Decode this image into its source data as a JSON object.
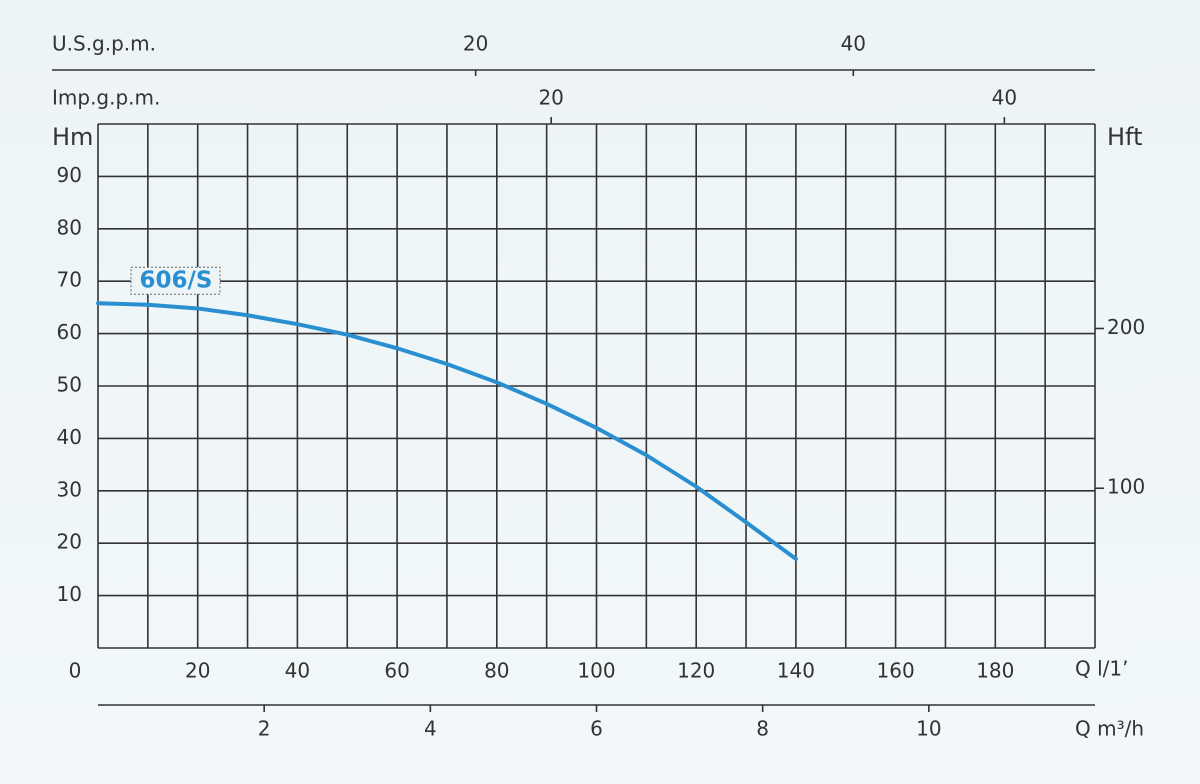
{
  "chart_data": {
    "type": "line",
    "y_label": "Hm",
    "y2_label": "Hft",
    "x_label": "Q l/1’",
    "x": [
      0,
      10,
      20,
      30,
      40,
      50,
      60,
      70,
      80,
      90,
      100,
      110,
      120,
      130,
      140
    ],
    "series": [
      {
        "name": "606/S",
        "color": "#2a8fd0",
        "values": [
          65.8,
          65.5,
          64.8,
          63.5,
          61.8,
          59.8,
          57.2,
          54.2,
          50.7,
          46.6,
          42,
          36.8,
          30.8,
          24,
          17
        ]
      }
    ],
    "xlim": [
      0,
      200
    ],
    "xticks": [
      0,
      20,
      40,
      60,
      80,
      100,
      120,
      140,
      160,
      180
    ],
    "ylim": [
      0,
      100
    ],
    "yticks": [
      10,
      20,
      30,
      40,
      50,
      60,
      70,
      80,
      90
    ],
    "y2lim": [
      0,
      328
    ],
    "y2ticks": [
      100,
      200
    ],
    "grid": true,
    "x_grid_step": 10,
    "y_grid_step": 10,
    "top_axes": [
      {
        "label": "U.S.g.p.m.",
        "lim": [
          0,
          52.8
        ],
        "ticks": [
          20,
          40
        ]
      },
      {
        "label": "Imp.g.p.m.",
        "lim": [
          0,
          44
        ],
        "ticks": [
          20,
          40
        ]
      }
    ],
    "bottom_axis": {
      "label": "Q m³/h",
      "lim": [
        0,
        12
      ],
      "ticks": [
        2,
        4,
        6,
        8,
        10
      ]
    }
  }
}
